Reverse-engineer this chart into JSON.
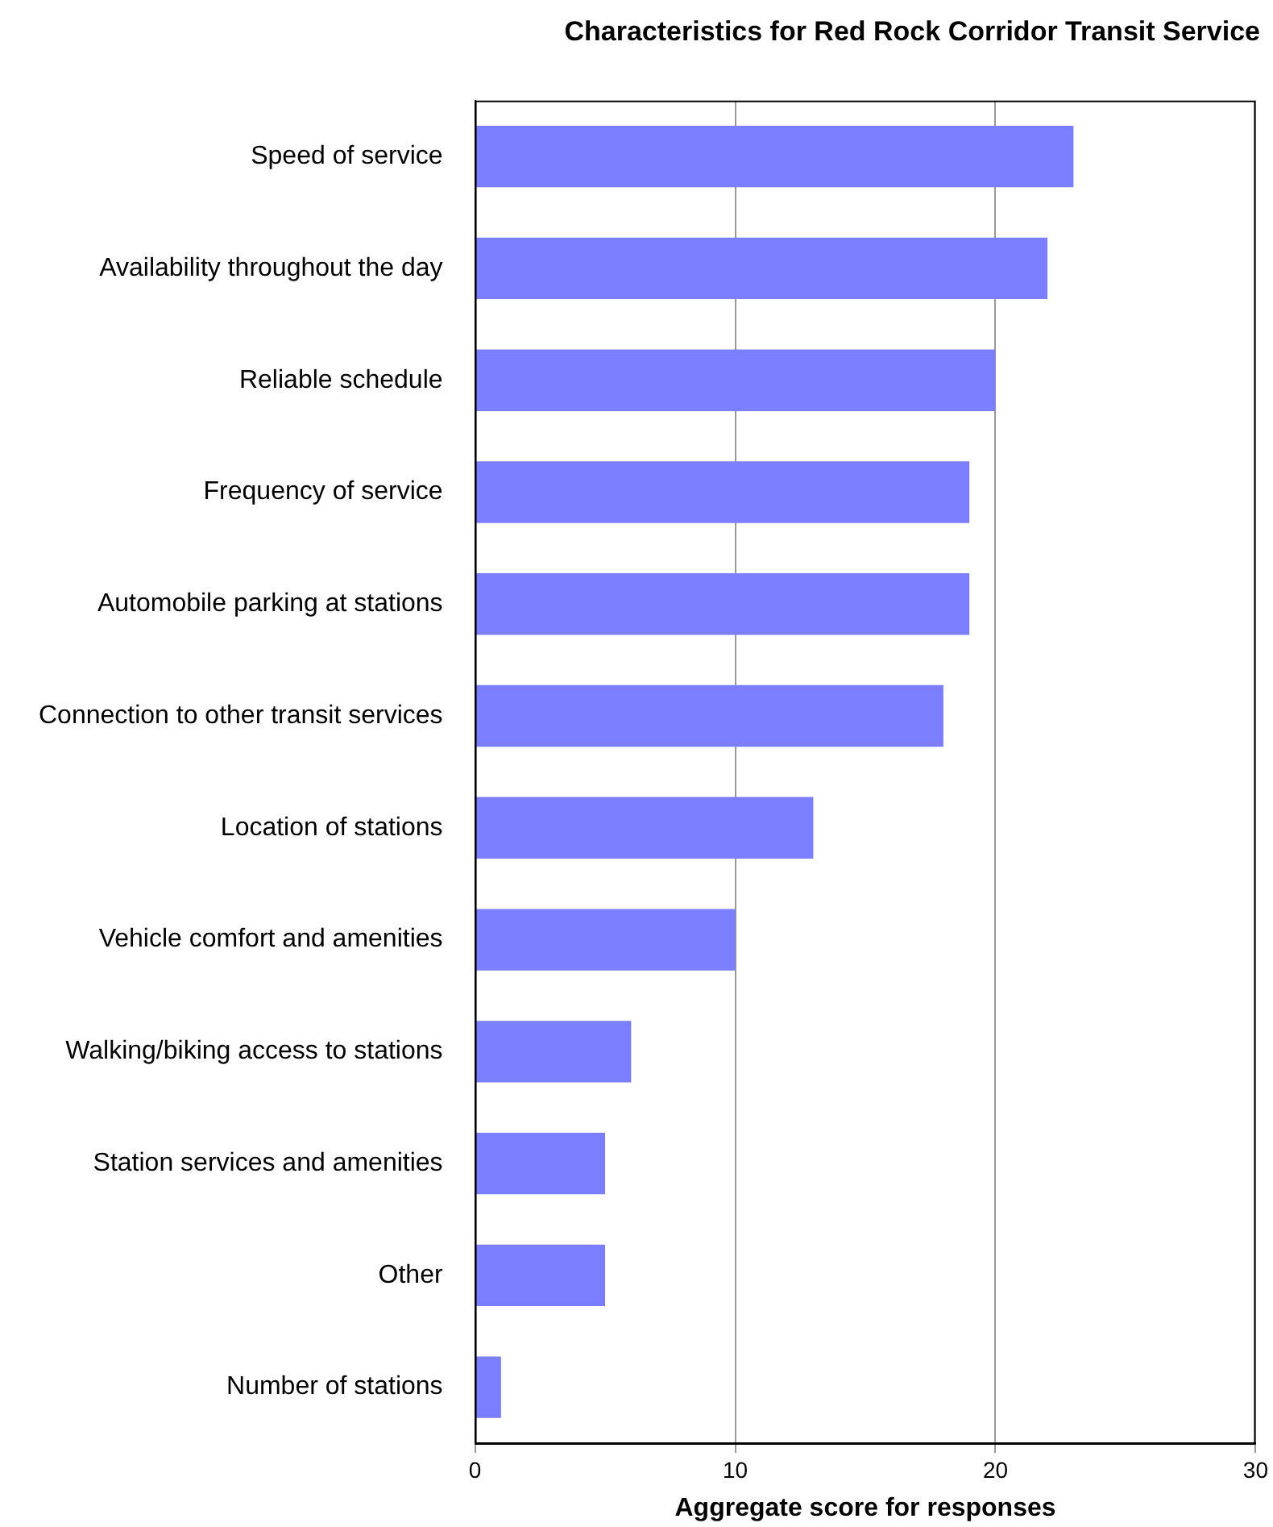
{
  "chart_data": {
    "type": "bar",
    "orientation": "horizontal",
    "title": "Characteristics for Red Rock Corridor Transit Service",
    "xlabel": "Aggregate score for responses",
    "categories": [
      "Speed of service",
      "Availability throughout the day",
      "Reliable schedule",
      "Frequency of service",
      "Automobile parking at stations",
      "Connection to other transit services",
      "Location of stations",
      "Vehicle comfort and amenities",
      "Walking/biking access to stations",
      "Station services and amenities",
      "Other",
      "Number of stations"
    ],
    "values": [
      23,
      22,
      20,
      19,
      19,
      18,
      13,
      10,
      6,
      5,
      5,
      1
    ],
    "color": "#7b7fff",
    "xlim": [
      0,
      30
    ],
    "xticks": [
      0,
      10,
      20,
      30
    ],
    "grid": "x",
    "legend": false
  }
}
